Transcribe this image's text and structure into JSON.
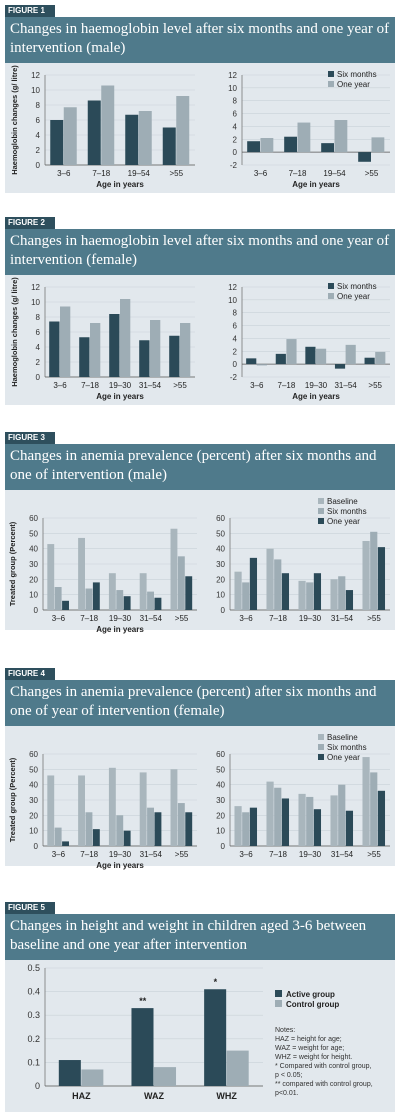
{
  "colors": {
    "header_bg": "#4f7a8b",
    "tag_bg": "#2e4f5d",
    "panel_bg": "#e2e8ed",
    "dark_series": "#2b4a58",
    "light_series": "#9eadb5",
    "mid_series": "#a9b6bd"
  },
  "figures": [
    {
      "tag": "FIGURE 1",
      "title": "Changes in haemoglobin level after six months and one year of intervention (male)",
      "chart_data": [
        {
          "type": "bar",
          "categories": [
            "3–6",
            "7–18",
            "19–54",
            ">55"
          ],
          "series": [
            {
              "name": "Six months",
              "values": [
                6,
                8.6,
                6.7,
                5
              ]
            },
            {
              "name": "One year",
              "values": [
                7.7,
                10.6,
                7.2,
                9.2
              ]
            }
          ],
          "ylabel": "Haemoglobin changes (g/ litre)",
          "xlabel": "Age in years",
          "ylim": [
            0,
            12
          ],
          "yticks": [
            0,
            2,
            4,
            6,
            8,
            10,
            12
          ],
          "legend": "none"
        },
        {
          "type": "bar",
          "categories": [
            "3–6",
            "7–18",
            "19–54",
            ">55"
          ],
          "series": [
            {
              "name": "Six months",
              "values": [
                1.7,
                2.4,
                1.4,
                -1.5
              ]
            },
            {
              "name": "One year",
              "values": [
                2.2,
                4.6,
                5,
                2.3
              ]
            }
          ],
          "ylabel": "",
          "xlabel": "Age in years",
          "ylim": [
            -2,
            12
          ],
          "yticks": [
            -2,
            0,
            2,
            4,
            6,
            8,
            10,
            12
          ],
          "legend": "top-right"
        }
      ]
    },
    {
      "tag": "FIGURE 2",
      "title": "Changes in haemoglobin level after six months and one year of intervention (female)",
      "chart_data": [
        {
          "type": "bar",
          "categories": [
            "3–6",
            "7–18",
            "19–30",
            "31–54",
            ">55"
          ],
          "series": [
            {
              "name": "Six months",
              "values": [
                7.4,
                5.3,
                8.4,
                4.9,
                5.5
              ]
            },
            {
              "name": "One year",
              "values": [
                9.4,
                7.2,
                10.4,
                7.6,
                7.2
              ]
            }
          ],
          "ylabel": "Haemoglobin changes (g/ litre)",
          "xlabel": "Age in years",
          "ylim": [
            0,
            12
          ],
          "yticks": [
            0,
            2,
            4,
            6,
            8,
            10,
            12
          ],
          "legend": "none"
        },
        {
          "type": "bar",
          "categories": [
            "3–6",
            "7–18",
            "19–30",
            "31–54",
            ">55"
          ],
          "series": [
            {
              "name": "Six months",
              "values": [
                0.9,
                1.6,
                2.7,
                -0.7,
                1
              ]
            },
            {
              "name": "One year",
              "values": [
                -0.2,
                3.9,
                2.4,
                3,
                1.9
              ]
            }
          ],
          "ylabel": "",
          "xlabel": "Age in years",
          "ylim": [
            -2,
            12
          ],
          "yticks": [
            -2,
            0,
            2,
            4,
            6,
            8,
            10,
            12
          ],
          "legend": "top-right"
        }
      ]
    },
    {
      "tag": "FIGURE 3",
      "title": "Changes in anemia prevalence (percent) after six months and one of intervention (male)",
      "chart_data": [
        {
          "type": "bar",
          "categories": [
            "3–6",
            "7–18",
            "19–30",
            "31–54",
            ">55"
          ],
          "series": [
            {
              "name": "Baseline",
              "values": [
                43,
                47,
                24,
                24,
                53
              ]
            },
            {
              "name": "Six months",
              "values": [
                15,
                14,
                13,
                12,
                35
              ]
            },
            {
              "name": "One year",
              "values": [
                6,
                18,
                9,
                8,
                22
              ]
            }
          ],
          "ylabel": "Treated group (Percent)",
          "xlabel": "Age in years",
          "ylim": [
            0,
            60
          ],
          "yticks": [
            0,
            10,
            20,
            30,
            40,
            50,
            60
          ],
          "legend": "none"
        },
        {
          "type": "bar",
          "categories": [
            "3–6",
            "7–18",
            "19–30",
            "31–54",
            ">55"
          ],
          "series": [
            {
              "name": "Baseline",
              "values": [
                25,
                40,
                19,
                20,
                45
              ]
            },
            {
              "name": "Six months",
              "values": [
                18,
                33,
                18,
                22,
                51
              ]
            },
            {
              "name": "One year",
              "values": [
                34,
                24,
                24,
                13,
                41
              ]
            }
          ],
          "ylabel": "",
          "xlabel": "",
          "ylim": [
            0,
            60
          ],
          "yticks": [
            0,
            10,
            20,
            30,
            40,
            50,
            60
          ],
          "legend": "top-right"
        }
      ]
    },
    {
      "tag": "FIGURE 4",
      "title": "Changes in anemia prevalence (percent) after six months and one of year of intervention (female)",
      "chart_data": [
        {
          "type": "bar",
          "categories": [
            "3–6",
            "7–18",
            "19–30",
            "31–54",
            ">55"
          ],
          "series": [
            {
              "name": "Baseline",
              "values": [
                46,
                46,
                51,
                48,
                50
              ]
            },
            {
              "name": "Six months",
              "values": [
                12,
                22,
                20,
                25,
                28
              ]
            },
            {
              "name": "One year",
              "values": [
                3,
                11,
                10,
                22,
                22
              ]
            }
          ],
          "ylabel": "Treated group (Percent)",
          "xlabel": "Age in years",
          "ylim": [
            0,
            60
          ],
          "yticks": [
            0,
            10,
            20,
            30,
            40,
            50,
            60
          ],
          "legend": "none"
        },
        {
          "type": "bar",
          "categories": [
            "3–6",
            "7–18",
            "19–30",
            "31–54",
            ">55"
          ],
          "series": [
            {
              "name": "Baseline",
              "values": [
                26,
                42,
                34,
                33,
                58
              ]
            },
            {
              "name": "Six months",
              "values": [
                22,
                38,
                32,
                40,
                48
              ]
            },
            {
              "name": "One year",
              "values": [
                25,
                31,
                24,
                23,
                36
              ]
            }
          ],
          "ylabel": "",
          "xlabel": "",
          "ylim": [
            0,
            60
          ],
          "yticks": [
            0,
            10,
            20,
            30,
            40,
            50,
            60
          ],
          "legend": "top-right"
        }
      ]
    },
    {
      "tag": "FIGURE 5",
      "title": "Changes in height and weight in children aged 3-6 between baseline and one year after intervention",
      "chart_data": [
        {
          "type": "bar",
          "categories": [
            "HAZ",
            "WAZ",
            "WHZ"
          ],
          "series": [
            {
              "name": "Active group",
              "values": [
                0.11,
                0.33,
                0.41
              ]
            },
            {
              "name": "Control group",
              "values": [
                0.07,
                0.08,
                0.15
              ]
            }
          ],
          "annotations": [
            "",
            "**",
            "*"
          ],
          "ylabel": "",
          "xlabel": "",
          "ylim": [
            0,
            0.5
          ],
          "yticks": [
            0,
            0.1,
            0.2,
            0.3,
            0.4,
            0.5
          ],
          "legend": "right"
        }
      ],
      "notes": [
        "Notes:",
        "HAZ = height for age;",
        "WAZ = weight for age;",
        "WHZ = weight for height.",
        "* Compared with control group,",
        "p < 0.05;",
        "** compared with control group,",
        "p<0.01."
      ]
    }
  ]
}
